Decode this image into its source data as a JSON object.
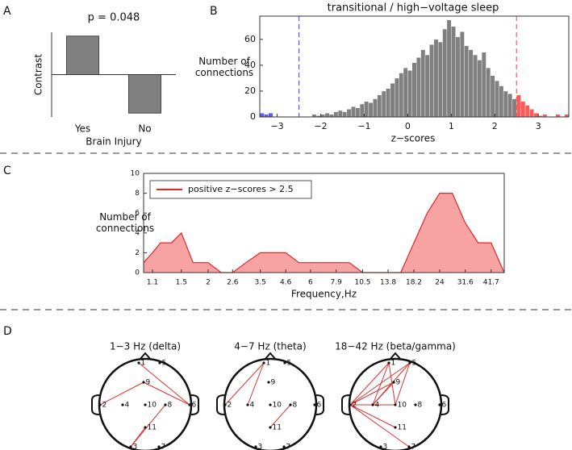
{
  "panel_labels": [
    "A",
    "B",
    "C",
    "D"
  ],
  "chart_data": [
    {
      "type": "bar",
      "title": "p = 0.048",
      "y_label": "Contrast",
      "x_label": "Brain Injury",
      "categories": [
        "Yes",
        "No"
      ],
      "values": [
        1,
        -1
      ],
      "ylim": [
        -1.1,
        1.1
      ],
      "color": "#808080"
    },
    {
      "type": "histogram",
      "title": "transitional / high−voltage sleep",
      "x_label": "z−scores",
      "y_label": "Number of connections",
      "bins": [
        -3.4,
        -3.3,
        -3.2,
        -3.1,
        -3,
        -2.9,
        -2.8,
        -2.7,
        -2.6,
        -2.5,
        -2.4,
        -2.3,
        -2.2,
        -2.1,
        -2,
        -1.9,
        -1.8,
        -1.7,
        -1.6,
        -1.5,
        -1.4,
        -1.3,
        -1.2,
        -1.1,
        -1,
        -0.9,
        -0.8,
        -0.7,
        -0.6,
        -0.5,
        -0.4,
        -0.3,
        -0.2,
        -0.1,
        0,
        0.1,
        0.2,
        0.3,
        0.4,
        0.5,
        0.6,
        0.7,
        0.8,
        0.9,
        1,
        1.1,
        1.2,
        1.3,
        1.4,
        1.5,
        1.6,
        1.7,
        1.8,
        1.9,
        2,
        2.1,
        2.2,
        2.3,
        2.4,
        2.5,
        2.6,
        2.7,
        2.8,
        2.9,
        3,
        3.1,
        3.2,
        3.3,
        3.4,
        3.5,
        3.6,
        3.7
      ],
      "values": [
        3,
        2,
        3,
        0,
        0,
        0,
        0,
        0,
        0,
        0,
        0,
        0,
        2,
        1,
        2,
        3,
        2,
        4,
        5,
        4,
        6,
        8,
        7,
        10,
        12,
        11,
        14,
        17,
        20,
        22,
        26,
        30,
        34,
        38,
        36,
        42,
        46,
        52,
        48,
        56,
        60,
        58,
        68,
        75,
        70,
        62,
        66,
        55,
        52,
        48,
        44,
        50,
        38,
        32,
        28,
        24,
        20,
        18,
        14,
        17,
        12,
        9,
        6,
        3,
        1,
        2,
        0,
        0,
        2,
        0,
        2
      ],
      "color": "#808080",
      "thresholds": [
        {
          "value": -2.5,
          "color": "#5a5aff"
        },
        {
          "value": 2.5,
          "color": "#ff5a5a"
        }
      ],
      "xlim": [
        -3.4,
        3.7
      ],
      "ylim": [
        0,
        78
      ],
      "xticks": [
        {
          "value": -3,
          "label": "−3"
        },
        {
          "value": -2,
          "label": "−2"
        },
        {
          "value": -1,
          "label": "−1"
        },
        0,
        1,
        2,
        3
      ],
      "yticks": [
        0,
        20,
        40,
        60
      ]
    },
    {
      "type": "area",
      "x_label": "Frequency,Hz",
      "y_label": "Number of connections",
      "x": [
        1,
        1.1,
        1.2,
        1.35,
        1.5,
        1.7,
        2,
        2.3,
        2.6,
        3,
        3.5,
        4,
        4.6,
        5.3,
        6,
        6.9,
        7.9,
        9.1,
        10.5,
        12,
        13.8,
        15.8,
        18.2,
        21,
        24,
        27.5,
        31.6,
        36.3,
        41.7,
        48
      ],
      "series": [
        {
          "name": "positive z−scores > 2.5",
          "color": "#e02828",
          "fill": "#f7a3a3",
          "values": [
            1,
            2,
            3,
            3,
            4,
            1,
            1,
            0,
            0,
            1,
            2,
            2,
            2,
            1,
            1,
            1,
            1,
            1,
            0,
            0,
            0,
            0,
            3,
            6,
            8,
            8,
            5,
            3,
            3,
            0
          ]
        }
      ],
      "xscale": "log",
      "xlim": [
        1,
        48
      ],
      "xticks": [
        1.1,
        1.5,
        2,
        2.6,
        3.5,
        4.6,
        6,
        7.9,
        10.5,
        13.8,
        18.2,
        24,
        31.6,
        41.7
      ],
      "ylim": [
        0,
        10
      ],
      "yticks": [
        0,
        2,
        4,
        6,
        8,
        10
      ],
      "legend": "upper left"
    }
  ],
  "heads": {
    "electrodes": [
      "1",
      "2",
      "3",
      "4",
      "5",
      "6",
      "7",
      "8",
      "9",
      "10",
      "11"
    ],
    "color": "#e03030",
    "maps": [
      {
        "title": "1−3 Hz (delta)",
        "edges": [
          [
            0,
            5
          ],
          [
            8,
            5
          ],
          [
            1,
            8
          ],
          [
            2,
            7
          ],
          [
            2,
            10
          ]
        ]
      },
      {
        "title": "4−7 Hz (theta)",
        "edges": [
          [
            1,
            0
          ],
          [
            3,
            0
          ],
          [
            10,
            7
          ]
        ]
      },
      {
        "title": "18−42 Hz (beta/gamma)",
        "edges": [
          [
            1,
            0
          ],
          [
            1,
            4
          ],
          [
            1,
            8
          ],
          [
            1,
            9
          ],
          [
            1,
            10
          ],
          [
            1,
            6
          ],
          [
            1,
            3
          ],
          [
            3,
            0
          ],
          [
            3,
            4
          ],
          [
            3,
            8
          ],
          [
            0,
            9
          ],
          [
            4,
            9
          ]
        ]
      }
    ]
  }
}
